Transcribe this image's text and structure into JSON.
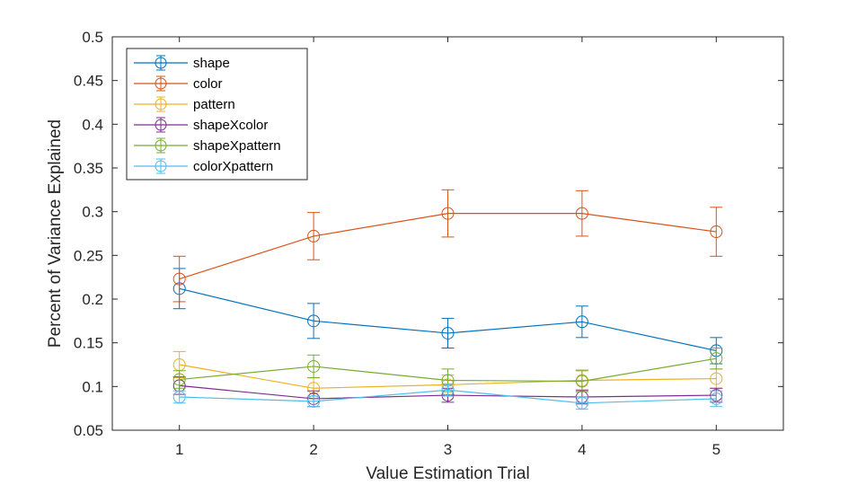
{
  "chart_data": {
    "type": "line",
    "xlabel": "Value Estimation Trial",
    "ylabel": "Percent of Variance Explained",
    "x": [
      1,
      2,
      3,
      4,
      5
    ],
    "x_ticks": [
      "1",
      "2",
      "3",
      "4",
      "5"
    ],
    "xlim": [
      0.5,
      5.5
    ],
    "ylim": [
      0.05,
      0.5
    ],
    "y_ticks": [
      "0.05",
      "0.1",
      "0.15",
      "0.2",
      "0.25",
      "0.3",
      "0.35",
      "0.4",
      "0.45",
      "0.5"
    ],
    "grid": false,
    "legend_position": "top-left",
    "marker": "open-circle",
    "error_bars": true,
    "series": [
      {
        "name": "shape",
        "color": "#0072BD",
        "values": [
          0.212,
          0.175,
          0.161,
          0.174,
          0.141
        ],
        "errors": [
          0.023,
          0.02,
          0.017,
          0.018,
          0.015
        ]
      },
      {
        "name": "color",
        "color": "#D95319",
        "values": [
          0.223,
          0.272,
          0.298,
          0.298,
          0.277
        ],
        "errors": [
          0.026,
          0.027,
          0.027,
          0.026,
          0.028
        ]
      },
      {
        "name": "pattern",
        "color": "#EDB120",
        "values": [
          0.125,
          0.098,
          0.102,
          0.107,
          0.109
        ],
        "errors": [
          0.015,
          0.012,
          0.011,
          0.012,
          0.011
        ]
      },
      {
        "name": "shapeXcolor",
        "color": "#7E2F8E",
        "values": [
          0.101,
          0.086,
          0.09,
          0.088,
          0.09
        ],
        "errors": [
          0.01,
          0.009,
          0.008,
          0.008,
          0.008
        ]
      },
      {
        "name": "shapeXpattern",
        "color": "#77AC30",
        "values": [
          0.108,
          0.123,
          0.107,
          0.106,
          0.132
        ],
        "errors": [
          0.01,
          0.013,
          0.013,
          0.012,
          0.012
        ]
      },
      {
        "name": "colorXpattern",
        "color": "#4DBEEE",
        "values": [
          0.088,
          0.083,
          0.096,
          0.081,
          0.086
        ],
        "errors": [
          0.007,
          0.006,
          0.007,
          0.007,
          0.009
        ]
      }
    ]
  }
}
